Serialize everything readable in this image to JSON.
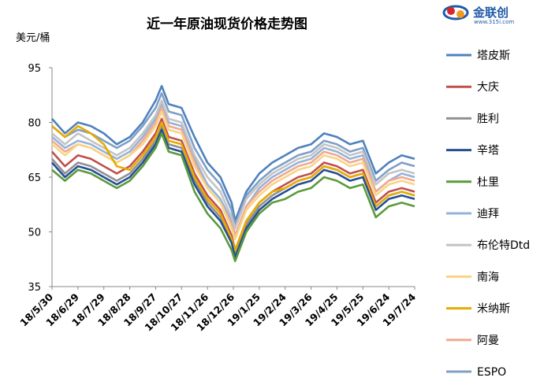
{
  "logo": {
    "name": "金联创",
    "url": "www.315i.com",
    "colors": {
      "blue": "#1f5aa8",
      "red": "#d9262b",
      "orange": "#f39a1e",
      "text": "#1f5aa8"
    }
  },
  "chart_data": {
    "type": "line",
    "title": "近一年原油现货价格走势图",
    "ylabel": "美元/桶",
    "xlabel": "",
    "ylim": [
      35,
      95
    ],
    "yticks": [
      35,
      50,
      65,
      80,
      95
    ],
    "xlim": [
      "2018-05-30",
      "2019-07-24"
    ],
    "xticks": [
      "18/5/30",
      "18/6/29",
      "18/7/29",
      "18/8/28",
      "18/9/27",
      "18/10/27",
      "18/11/26",
      "18/12/26",
      "19/1/25",
      "19/2/24",
      "19/3/26",
      "19/4/25",
      "19/5/25",
      "19/6/24",
      "19/7/24"
    ],
    "xtick_dates": [
      "2018-05-30",
      "2018-06-29",
      "2018-07-29",
      "2018-08-28",
      "2018-09-27",
      "2018-10-27",
      "2018-11-26",
      "2018-12-26",
      "2019-01-25",
      "2019-02-24",
      "2019-03-26",
      "2019-04-25",
      "2019-05-25",
      "2019-06-24",
      "2019-07-24"
    ],
    "grid": false,
    "legend_position": "right",
    "x": [
      "2018-05-30",
      "2018-06-14",
      "2018-06-29",
      "2018-07-14",
      "2018-07-29",
      "2018-08-13",
      "2018-08-28",
      "2018-09-12",
      "2018-09-27",
      "2018-10-04",
      "2018-10-12",
      "2018-10-27",
      "2018-11-11",
      "2018-11-26",
      "2018-12-11",
      "2018-12-24",
      "2018-12-28",
      "2019-01-10",
      "2019-01-25",
      "2019-02-09",
      "2019-02-24",
      "2019-03-11",
      "2019-03-26",
      "2019-04-10",
      "2019-04-25",
      "2019-05-10",
      "2019-05-25",
      "2019-06-09",
      "2019-06-24",
      "2019-07-09",
      "2019-07-24"
    ],
    "series": [
      {
        "name": "塔皮斯",
        "color": "#4f81bd",
        "values": [
          81,
          77,
          80,
          79,
          77,
          74,
          76,
          80,
          86,
          90,
          85,
          84,
          76,
          69,
          65,
          58,
          53,
          61,
          66,
          69,
          71,
          73,
          74,
          77,
          76,
          74,
          75,
          66,
          69,
          71,
          70
        ]
      },
      {
        "name": "大庆",
        "color": "#c0504d",
        "values": [
          72,
          68,
          71,
          70,
          68,
          66,
          68,
          72,
          77,
          81,
          76,
          75,
          66,
          60,
          56,
          49,
          45,
          53,
          58,
          61,
          63,
          65,
          66,
          69,
          68,
          66,
          67,
          58,
          61,
          62,
          61
        ]
      },
      {
        "name": "胜利",
        "color": "#909090",
        "values": [
          70,
          66,
          69,
          68,
          66,
          64,
          66,
          70,
          75,
          79,
          74,
          73,
          64,
          58,
          54,
          48,
          44,
          52,
          57,
          60,
          62,
          64,
          65,
          68,
          67,
          65,
          66,
          57,
          60,
          61,
          60
        ]
      },
      {
        "name": "辛塔",
        "color": "#254f94",
        "values": [
          69,
          65,
          68,
          67,
          65,
          63,
          65,
          69,
          74,
          78,
          73,
          72,
          63,
          57,
          53,
          47,
          43,
          51,
          56,
          59,
          61,
          63,
          64,
          67,
          66,
          64,
          65,
          56,
          59,
          60,
          59
        ]
      },
      {
        "name": "杜里",
        "color": "#5b9a3c",
        "values": [
          67,
          64,
          67,
          66,
          64,
          62,
          64,
          68,
          73,
          77,
          72,
          71,
          61,
          55,
          51,
          45,
          42,
          50,
          55,
          58,
          59,
          61,
          62,
          65,
          64,
          62,
          63,
          54,
          57,
          58,
          57
        ]
      },
      {
        "name": "迪拜",
        "color": "#95b3d7",
        "values": [
          76,
          73,
          75,
          74,
          72,
          70,
          72,
          76,
          81,
          85,
          80,
          79,
          70,
          63,
          59,
          53,
          49,
          57,
          62,
          65,
          67,
          69,
          70,
          73,
          72,
          70,
          71,
          61,
          64,
          66,
          65
        ]
      },
      {
        "name": "布伦特Dtd",
        "color": "#c4c4c4",
        "values": [
          77,
          74,
          77,
          75,
          73,
          71,
          73,
          77,
          82,
          86,
          81,
          80,
          71,
          65,
          61,
          54,
          51,
          59,
          63,
          66,
          68,
          70,
          71,
          74,
          73,
          71,
          72,
          63,
          66,
          67,
          66
        ]
      },
      {
        "name": "南海",
        "color": "#f8d487",
        "values": [
          74,
          71,
          74,
          73,
          71,
          69,
          71,
          74,
          79,
          83,
          78,
          77,
          68,
          62,
          58,
          51,
          48,
          56,
          60,
          63,
          65,
          67,
          68,
          71,
          70,
          68,
          69,
          60,
          63,
          64,
          63
        ]
      },
      {
        "name": "米纳斯",
        "color": "#e6ac00",
        "values": [
          79,
          76,
          79,
          77,
          74,
          68,
          67,
          71,
          76,
          80,
          75,
          74,
          65,
          59,
          55,
          48,
          45,
          53,
          58,
          61,
          62,
          64,
          65,
          68,
          67,
          65,
          66,
          57,
          60,
          61,
          60
        ]
      },
      {
        "name": "阿曼",
        "color": "#f2a98f",
        "values": [
          75,
          72,
          74,
          73,
          71,
          69,
          71,
          75,
          80,
          84,
          79,
          78,
          69,
          62,
          58,
          52,
          49,
          57,
          61,
          64,
          66,
          68,
          69,
          72,
          71,
          69,
          70,
          61,
          64,
          65,
          64
        ]
      },
      {
        "name": "ESPO",
        "color": "#7f9fc6",
        "values": [
          79,
          76,
          78,
          77,
          75,
          73,
          75,
          79,
          84,
          88,
          83,
          82,
          73,
          67,
          63,
          56,
          52,
          60,
          64,
          67,
          69,
          71,
          72,
          75,
          74,
          72,
          73,
          64,
          67,
          69,
          68
        ]
      }
    ]
  }
}
